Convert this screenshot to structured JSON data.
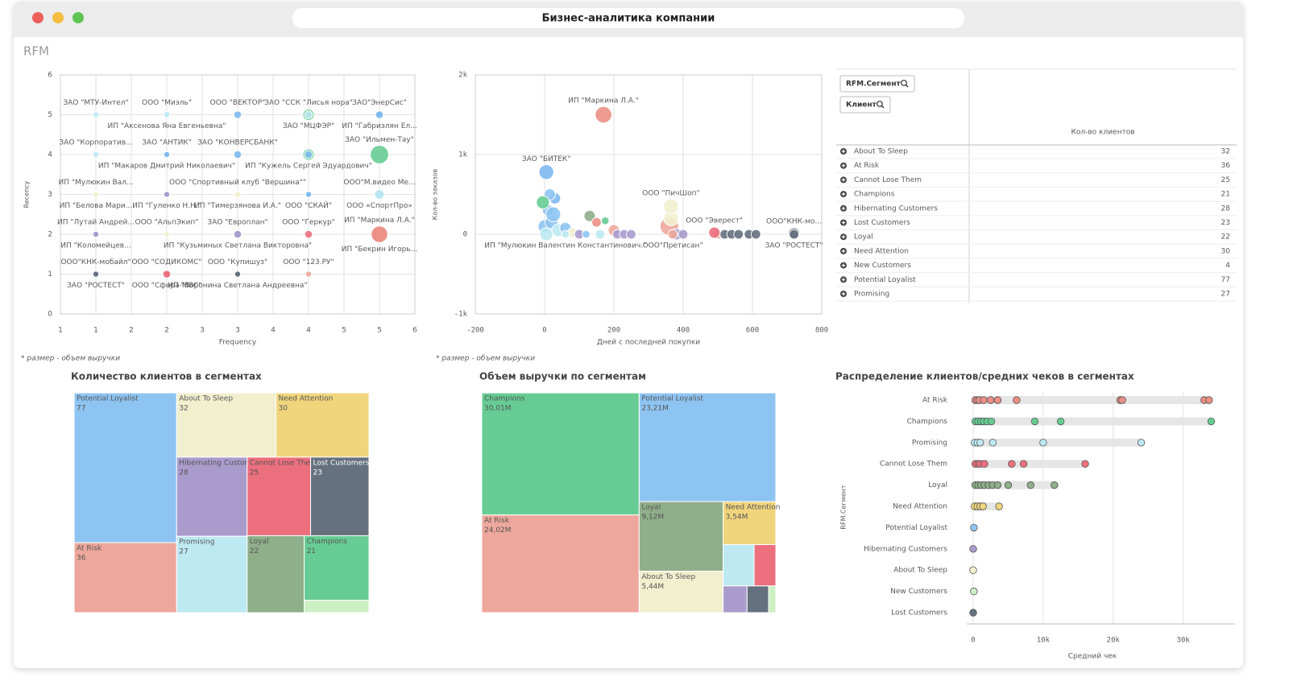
{
  "window_title": "Бизнес-аналитика компании",
  "section": "RFM",
  "chart_data": [
    {
      "type": "scatter",
      "xlabel": "Frequency",
      "ylabel": "Recency",
      "note": "* размер - объем выручки",
      "xlim": [
        0.5,
        5.5
      ],
      "xticks": [
        {
          "value": 0.5,
          "label": "1"
        },
        {
          "value": 1,
          "label": "1"
        },
        {
          "value": 1.5,
          "label": "2"
        },
        {
          "value": 2,
          "label": "2"
        },
        {
          "value": 2.5,
          "label": "3"
        },
        {
          "value": 3,
          "label": "3"
        },
        {
          "value": 3.5,
          "label": "4"
        },
        {
          "value": 4,
          "label": "4"
        },
        {
          "value": 4.5,
          "label": "5"
        },
        {
          "value": 5,
          "label": "5"
        },
        {
          "value": 5.5,
          "label": "6"
        }
      ],
      "ylim": [
        0,
        6
      ],
      "yticks": [
        0,
        1,
        2,
        3,
        4,
        5,
        6
      ],
      "points": [
        {
          "x": 1,
          "y": 5,
          "size": 2,
          "color": "#bde9f2",
          "label": "ЗАО \"МТУ-Интел\""
        },
        {
          "x": 2,
          "y": 5,
          "size": 2,
          "color": "#bde9f2",
          "label": "ООО \"Миэль\""
        },
        {
          "x": 2,
          "y": 5,
          "size": 2,
          "color": "#bde9f2",
          "label": "ИП \"Аксенова Яна Евгеньевна\""
        },
        {
          "x": 3,
          "y": 5,
          "size": 3,
          "color": "#7fb8f0",
          "label": "ООО \"ВЕКТОР\""
        },
        {
          "x": 4,
          "y": 5,
          "size": 5,
          "color": "#66cc93",
          "label": "ЗАО \"ССК \"Лисья нора\""
        },
        {
          "x": 4,
          "y": 5,
          "size": 3,
          "color": "#bde9f2",
          "label": "ЗАО \"МЦФЭР\""
        },
        {
          "x": 5,
          "y": 5,
          "size": 3,
          "color": "#7fb8f0",
          "label": "ЗАО\"ЭнерСис\""
        },
        {
          "x": 5,
          "y": 5,
          "size": 3,
          "color": "#7fb8f0",
          "label": "ИП \"Габриэлян Ел..."
        },
        {
          "x": 1,
          "y": 4,
          "size": 2,
          "color": "#bde9f2",
          "label": "ЗАО \"Корпоратив..."
        },
        {
          "x": 2,
          "y": 4,
          "size": 2,
          "color": "#7fb8f0",
          "label": "ЗАО \"АНТИК\""
        },
        {
          "x": 2,
          "y": 4,
          "size": 2,
          "color": "#7fb8f0",
          "label": "ИП \"Макаров Дмитрий Николаевич\""
        },
        {
          "x": 3,
          "y": 4,
          "size": 3,
          "color": "#7fb8f0",
          "label": "ЗАО \"КОНВЕРСБАНК\""
        },
        {
          "x": 4,
          "y": 4,
          "size": 5,
          "color": "#66cc93"
        },
        {
          "x": 4,
          "y": 4,
          "size": 3,
          "color": "#7fb8f0",
          "label": "ИП \"Кужель Сергей Эдуардович\""
        },
        {
          "x": 5,
          "y": 4,
          "size": 9,
          "color": "#66cc93",
          "label": "ЗАО \"Ильмен-Тау\""
        },
        {
          "x": 5,
          "y": 3,
          "size": 4,
          "color": "#7fb8f0",
          "label": "ООО\"М.видео Ме..."
        },
        {
          "x": 5,
          "y": 3,
          "size": 4,
          "color": "#bde9f2",
          "label": "ООО «СпортПро»"
        },
        {
          "x": 1,
          "y": 3,
          "size": 2,
          "color": "#f2efcf",
          "label": "ИП \"Мулюкин Вал..."
        },
        {
          "x": 1,
          "y": 3,
          "size": 2,
          "color": "#f2efcf",
          "label": "ИП \"Белова Мари..."
        },
        {
          "x": 2,
          "y": 3,
          "size": 2,
          "color": "#a99ccd"
        },
        {
          "x": 2,
          "y": 3,
          "size": 2,
          "color": "#a99ccd",
          "label": "ИП \"Гуленко Н.Н.\""
        },
        {
          "x": 3,
          "y": 3,
          "size": 2,
          "color": "#f2efcf",
          "label": "ООО \"Спортивный клуб \"Вершина\"\""
        },
        {
          "x": 3,
          "y": 3,
          "size": 2,
          "color": "#f2efcf",
          "label": "ИП \"Тимерзянова И.А.\""
        },
        {
          "x": 4,
          "y": 3,
          "size": 2,
          "color": "#7fb8f0"
        },
        {
          "x": 4,
          "y": 3,
          "size": 2,
          "color": "#7fb8f0",
          "label": "ООО \"СКАЙ\""
        },
        {
          "x": 1,
          "y": 2,
          "size": 2,
          "color": "#a99ccd",
          "label": "ИП \"Лутай Андрей..."
        },
        {
          "x": 1,
          "y": 2,
          "size": 2,
          "color": "#a99ccd",
          "label": "ИП \"Коломейцев..."
        },
        {
          "x": 2,
          "y": 2,
          "size": 2,
          "color": "#f2efcf",
          "label": "ООО \"АльпЭкип\""
        },
        {
          "x": 3,
          "y": 2,
          "size": 3,
          "color": "#a99ccd",
          "label": "ЗАО \"Европлан\""
        },
        {
          "x": 3,
          "y": 2,
          "size": 3,
          "color": "#a99ccd",
          "label": "ИП \"Кузьминых Светлана Викторовна\""
        },
        {
          "x": 4,
          "y": 2,
          "size": 3,
          "color": "#ec6f7e",
          "label": "ООО \"Геркур\""
        },
        {
          "x": 5,
          "y": 2,
          "size": 8,
          "color": "#ec8f86",
          "label": "ИП \"Маркина Л.А.\""
        },
        {
          "x": 5,
          "y": 2,
          "size": 8,
          "color": "#ec8f86",
          "label": "ИП \"Бекрин Игорь..."
        },
        {
          "x": 1,
          "y": 1,
          "size": 2,
          "color": "#66717f",
          "label": "ООО\"КНК-мобайл\""
        },
        {
          "x": 1,
          "y": 1,
          "size": 2,
          "color": "#66717f",
          "label": "ЗАО \"РОСТЕСТ\""
        },
        {
          "x": 2,
          "y": 1,
          "size": 3,
          "color": "#ec6f7e",
          "label": "ООО \"СОДИКОМС\""
        },
        {
          "x": 2,
          "y": 1,
          "size": 3,
          "color": "#ec6f7e",
          "label": "ООО \"Сфера-МВС\""
        },
        {
          "x": 3,
          "y": 1,
          "size": 2,
          "color": "#66717f",
          "label": "ООО \"Купишуз\""
        },
        {
          "x": 3,
          "y": 1,
          "size": 2,
          "color": "#66717f",
          "label": "ИП \"Воронина Светлана Андреевна\""
        },
        {
          "x": 4,
          "y": 1,
          "size": 2,
          "color": "#eea79c",
          "label": "ООО \"123.РУ\""
        }
      ]
    },
    {
      "type": "scatter",
      "xlabel": "Дней с последней покупки",
      "ylabel": "Кол-во заказов",
      "note": "* размер - объем выручки",
      "xlim": [
        -200,
        800
      ],
      "xticks": [
        -200,
        0,
        200,
        400,
        600,
        800
      ],
      "ylim": [
        -1000,
        2000
      ],
      "yticks": [
        {
          "value": -1000,
          "label": "-1k"
        },
        0,
        {
          "value": 1000,
          "label": "1k"
        },
        {
          "value": 2000,
          "label": "2k"
        }
      ],
      "points": [
        {
          "x": 0,
          "y": 100,
          "size": 6,
          "color": "#8ec4f2"
        },
        {
          "x": 20,
          "y": 150,
          "size": 6,
          "color": "#8ec4f2"
        },
        {
          "x": 10,
          "y": 300,
          "size": 5,
          "color": "#8ec4f2"
        },
        {
          "x": 30,
          "y": 450,
          "size": 5,
          "color": "#7fb8f0"
        },
        {
          "x": 15,
          "y": 500,
          "size": 5,
          "color": "#8ec4f2"
        },
        {
          "x": -5,
          "y": 400,
          "size": 6,
          "color": "#66cc93"
        },
        {
          "x": 25,
          "y": 250,
          "size": 7,
          "color": "#8ec4f2"
        },
        {
          "x": 40,
          "y": 50,
          "size": 6,
          "color": "#bde9f2"
        },
        {
          "x": 5,
          "y": 0,
          "size": 6,
          "color": "#bde9f2"
        },
        {
          "x": 60,
          "y": 80,
          "size": 5,
          "color": "#8ec4f2"
        },
        {
          "x": 80,
          "y": 20,
          "size": 4,
          "color": "#f2efcf"
        },
        {
          "x": 100,
          "y": 0,
          "size": 4,
          "color": "#a99ccd"
        },
        {
          "x": 120,
          "y": 0,
          "size": 3,
          "color": "#8ec4f2"
        },
        {
          "x": 130,
          "y": 230,
          "size": 5,
          "color": "#8fae8a"
        },
        {
          "x": 150,
          "y": 150,
          "size": 4,
          "color": "#ec8f86"
        },
        {
          "x": 175,
          "y": 170,
          "size": 3,
          "color": "#66cc93"
        },
        {
          "x": 200,
          "y": 50,
          "size": 5,
          "color": "#eea79c"
        },
        {
          "x": 210,
          "y": 0,
          "size": 4,
          "color": "#a99ccd"
        },
        {
          "x": 230,
          "y": 0,
          "size": 4,
          "color": "#a99ccd"
        },
        {
          "x": 250,
          "y": 0,
          "size": 4,
          "color": "#a99ccd"
        },
        {
          "x": 160,
          "y": 0,
          "size": 4,
          "color": "#bde9f2"
        },
        {
          "x": 360,
          "y": 100,
          "size": 9,
          "color": "#eea79c"
        },
        {
          "x": 365,
          "y": 200,
          "size": 7,
          "color": "#f2efcf"
        },
        {
          "x": 380,
          "y": 0,
          "size": 5,
          "color": "#a99ccd"
        },
        {
          "x": 400,
          "y": 0,
          "size": 4,
          "color": "#a99ccd"
        },
        {
          "x": 500,
          "y": 0,
          "size": 4,
          "color": "#eea79c"
        },
        {
          "x": 520,
          "y": 0,
          "size": 4,
          "color": "#66717f"
        },
        {
          "x": 540,
          "y": 0,
          "size": 4,
          "color": "#66717f"
        },
        {
          "x": 560,
          "y": 0,
          "size": 4,
          "color": "#66717f"
        },
        {
          "x": 590,
          "y": 0,
          "size": 4,
          "color": "#66717f"
        },
        {
          "x": 610,
          "y": 0,
          "size": 4,
          "color": "#66717f"
        },
        {
          "x": 170,
          "y": 1500,
          "size": 8,
          "color": "#ec8f86",
          "label": "ИП \"Маркина Л.А.\""
        },
        {
          "x": 5,
          "y": 780,
          "size": 7,
          "color": "#7fb8f0",
          "label": "ЗАО \"БИТЕК\""
        },
        {
          "x": 365,
          "y": 350,
          "size": 7,
          "color": "#f2efcf",
          "label": "ООО \"ПичШоп\""
        },
        {
          "x": 490,
          "y": 20,
          "size": 5,
          "color": "#ec6f7e",
          "label": "ООО \"Эверест\""
        },
        {
          "x": 720,
          "y": 10,
          "size": 5,
          "color": "#66717f",
          "label": "ООО\"КНК-мо..."
        },
        {
          "x": 60,
          "y": 0,
          "size": 3,
          "color": "#bde9f2",
          "label": "ИП \"Мулюкин Валентин Константинович.\""
        },
        {
          "x": 370,
          "y": 0,
          "size": 4,
          "color": "#eea79c",
          "label": "ООО\"Претисан\""
        },
        {
          "x": 720,
          "y": 0,
          "size": 4,
          "color": "#66717f",
          "label": "ЗАО \"РОСТЕСТ\""
        }
      ]
    },
    {
      "type": "treemap",
      "title": "Количество клиентов в сегментах",
      "categories": [
        "Potential Loyalist",
        "At Risk",
        "About To Sleep",
        "Need Attention",
        "Hibernating Customers",
        "Promising",
        "Cannot Lose Them",
        "Lost Customers",
        "Loyal",
        "Champions",
        null
      ],
      "values": [
        77,
        36,
        32,
        30,
        28,
        27,
        25,
        23,
        22,
        21,
        4
      ],
      "colors": [
        "#8ec4f2",
        "#eea79c",
        "#f2efcf",
        "#f0d57d",
        "#a99ccd",
        "#bde9f2",
        "#ec6f7e",
        "#66717f",
        "#8fae8a",
        "#66cc93",
        "#ccf0c3"
      ]
    },
    {
      "type": "treemap",
      "title": "Объем выручки по сегментам",
      "categories": [
        "Champions",
        "At Risk",
        "Potential Loyalist",
        "Loyal",
        "About To Sleep",
        "Need Attention",
        null,
        null,
        null,
        null,
        null
      ],
      "values": [
        30.01,
        24.02,
        23.21,
        9.12,
        5.44,
        3.54,
        2.0,
        1.4,
        1.0,
        0.9,
        0.3
      ],
      "value_labels": [
        "30,01M",
        "24,02M",
        "23,21M",
        "9,12M",
        "5,44M",
        "3,54M",
        null,
        null,
        null,
        null,
        null
      ],
      "colors": [
        "#66cc93",
        "#eea79c",
        "#8ec4f2",
        "#8fae8a",
        "#f2efcf",
        "#f0d57d",
        "#bde9f2",
        "#ec6f7e",
        "#a99ccd",
        "#66717f",
        "#ccf0c3"
      ]
    },
    {
      "type": "dot",
      "title": "Распределение клиентов/средних чеков в сегментах",
      "xlabel": "Средний чек",
      "ylabel": "RFM.Сегмент",
      "xlim": [
        0,
        37400
      ],
      "xticks": [
        0,
        {
          "value": 10000,
          "label": "10k"
        },
        {
          "value": 20000,
          "label": "20k"
        },
        {
          "value": 30000,
          "label": "30k"
        }
      ],
      "series": [
        {
          "name": "At Risk",
          "color": "#ec8f86",
          "values": [
            300,
            600,
            900,
            1500,
            2500,
            3500,
            6200,
            21000,
            21300,
            33000,
            33700
          ]
        },
        {
          "name": "Champions",
          "color": "#66cc93",
          "values": [
            300,
            700,
            1100,
            1500,
            2000,
            2600,
            8800,
            12500,
            34000
          ]
        },
        {
          "name": "Promising",
          "color": "#bde9f2",
          "values": [
            200,
            600,
            1000,
            2800,
            10000,
            24000
          ]
        },
        {
          "name": "Cannot Lose Them",
          "color": "#ec6f7e",
          "values": [
            300,
            700,
            1000,
            1600,
            5500,
            7200,
            16000
          ]
        },
        {
          "name": "Loyal",
          "color": "#8fae8a",
          "values": [
            300,
            700,
            1100,
            1600,
            2200,
            2800,
            3500,
            5000,
            8200,
            11600
          ]
        },
        {
          "name": "Need Attention",
          "color": "#f0d57d",
          "values": [
            200,
            600,
            1000,
            1400,
            3700
          ]
        },
        {
          "name": "Potential Loyalist",
          "color": "#8ec4f2",
          "values": [
            100
          ]
        },
        {
          "name": "Hibernating Customers",
          "color": "#a99ccd",
          "values": [
            0
          ]
        },
        {
          "name": "About To Sleep",
          "color": "#f2efcf",
          "values": [
            0
          ]
        },
        {
          "name": "New Customers",
          "color": "#ccf0c3",
          "values": [
            100
          ]
        },
        {
          "name": "Lost Customers",
          "color": "#66717f",
          "values": [
            0
          ]
        }
      ]
    }
  ],
  "table": {
    "filters": [
      "RFM.Сегмент",
      "Клиент"
    ],
    "column": "Кол-во клиентов",
    "rows": [
      [
        "About To Sleep",
        32
      ],
      [
        "At Risk",
        36
      ],
      [
        "Cannot Lose Them",
        25
      ],
      [
        "Champions",
        21
      ],
      [
        "Hibernating Customers",
        28
      ],
      [
        "Lost Customers",
        23
      ],
      [
        "Loyal",
        22
      ],
      [
        "Need Attention",
        30
      ],
      [
        "New Customers",
        4
      ],
      [
        "Potential Loyalist",
        77
      ],
      [
        "Promising",
        27
      ]
    ]
  }
}
